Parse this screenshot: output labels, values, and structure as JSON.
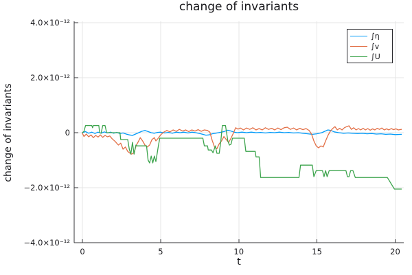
{
  "chart_data": {
    "type": "line",
    "title": "change of invariants",
    "xlabel": "t",
    "ylabel": "change of invariants",
    "value_unit": "1e-12",
    "xlim": [
      -0.55,
      20.55
    ],
    "ylim_e12": [
      -4.05,
      4.05
    ],
    "grid": true,
    "legend_position": "top-right",
    "x_ticks": {
      "values": [
        0,
        5,
        10,
        15,
        20
      ],
      "labels": [
        "0",
        "5",
        "10",
        "15",
        "20"
      ]
    },
    "y_ticks": {
      "values_e12": [
        4,
        2,
        0,
        -2,
        -4
      ],
      "labels": [
        "4.0×10⁻¹²",
        "2.0×10⁻¹²",
        "0",
        "−2.0×10⁻¹²",
        "−4.0×10⁻¹²"
      ]
    },
    "series": [
      {
        "name": "∫η",
        "color": "#009af9",
        "points_e12": [
          [
            0,
            0
          ],
          [
            0.2,
            0.04
          ],
          [
            0.4,
            -0.02
          ],
          [
            0.6,
            0.02
          ],
          [
            0.8,
            -0.03
          ],
          [
            1,
            0.02
          ],
          [
            1.2,
            -0.02
          ],
          [
            1.4,
            0.03
          ],
          [
            1.6,
            -0.01
          ],
          [
            1.8,
            0.02
          ],
          [
            2,
            -0.02
          ],
          [
            2.2,
            0.01
          ],
          [
            2.4,
            -0.03
          ],
          [
            2.6,
            -0.01
          ],
          [
            2.8,
            -0.05
          ],
          [
            3,
            -0.08
          ],
          [
            3.2,
            -0.1
          ],
          [
            3.4,
            -0.05
          ],
          [
            3.6,
            0
          ],
          [
            3.8,
            0.05
          ],
          [
            4,
            0.08
          ],
          [
            4.2,
            0.04
          ],
          [
            4.4,
            0
          ],
          [
            4.6,
            -0.02
          ],
          [
            4.8,
            0.01
          ],
          [
            5,
            0.02
          ],
          [
            5.25,
            -0.01
          ],
          [
            5.5,
            0.01
          ],
          [
            5.75,
            -0.02
          ],
          [
            6,
            0.02
          ],
          [
            6.25,
            0
          ],
          [
            6.5,
            0.02
          ],
          [
            6.75,
            -0.01
          ],
          [
            7,
            0.02
          ],
          [
            7.25,
            0
          ],
          [
            7.5,
            -0.03
          ],
          [
            7.7,
            -0.06
          ],
          [
            7.9,
            -0.09
          ],
          [
            8.1,
            -0.08
          ],
          [
            8.3,
            -0.04
          ],
          [
            8.5,
            -0.02
          ],
          [
            8.7,
            0
          ],
          [
            8.9,
            0.02
          ],
          [
            9.1,
            0.05
          ],
          [
            9.3,
            0.09
          ],
          [
            9.5,
            0.06
          ],
          [
            9.7,
            0.02
          ],
          [
            9.9,
            0
          ],
          [
            10.2,
            0.02
          ],
          [
            10.5,
            0
          ],
          [
            10.8,
            0.02
          ],
          [
            11.1,
            0
          ],
          [
            11.4,
            0.01
          ],
          [
            11.7,
            -0.01
          ],
          [
            12,
            0.01
          ],
          [
            12.3,
            0
          ],
          [
            12.6,
            0.02
          ],
          [
            12.9,
            0
          ],
          [
            13.2,
            0.01
          ],
          [
            13.5,
            -0.01
          ],
          [
            13.8,
            0
          ],
          [
            14.1,
            -0.02
          ],
          [
            14.4,
            -0.04
          ],
          [
            14.7,
            -0.06
          ],
          [
            15,
            -0.04
          ],
          [
            15.3,
            0
          ],
          [
            15.5,
            0.05
          ],
          [
            15.7,
            0.1
          ],
          [
            15.9,
            0.08
          ],
          [
            16.1,
            0.03
          ],
          [
            16.4,
            0
          ],
          [
            16.7,
            -0.02
          ],
          [
            17,
            -0.01
          ],
          [
            17.3,
            -0.02
          ],
          [
            17.6,
            -0.03
          ],
          [
            17.9,
            -0.02
          ],
          [
            18.2,
            -0.04
          ],
          [
            18.5,
            -0.03
          ],
          [
            18.8,
            -0.05
          ],
          [
            19.1,
            -0.04
          ],
          [
            19.4,
            -0.06
          ],
          [
            19.7,
            -0.05
          ],
          [
            20,
            -0.07
          ],
          [
            20.4,
            -0.06
          ]
        ]
      },
      {
        "name": "∫v",
        "color": "#e26f46",
        "points_e12": [
          [
            0,
            -0.02
          ],
          [
            0.1,
            -0.14
          ],
          [
            0.25,
            -0.05
          ],
          [
            0.4,
            -0.15
          ],
          [
            0.55,
            -0.08
          ],
          [
            0.7,
            -0.18
          ],
          [
            0.85,
            -0.1
          ],
          [
            1,
            -0.16
          ],
          [
            1.15,
            -0.08
          ],
          [
            1.3,
            -0.17
          ],
          [
            1.45,
            -0.1
          ],
          [
            1.6,
            -0.15
          ],
          [
            1.75,
            -0.12
          ],
          [
            1.9,
            -0.22
          ],
          [
            2.1,
            -0.32
          ],
          [
            2.3,
            -0.45
          ],
          [
            2.45,
            -0.38
          ],
          [
            2.6,
            -0.6
          ],
          [
            2.75,
            -0.52
          ],
          [
            2.9,
            -0.68
          ],
          [
            3.05,
            -0.75
          ],
          [
            3.15,
            -0.78
          ],
          [
            3.3,
            -0.72
          ],
          [
            3.45,
            -0.45
          ],
          [
            3.6,
            -0.3
          ],
          [
            3.7,
            -0.18
          ],
          [
            3.85,
            -0.3
          ],
          [
            4,
            -0.45
          ],
          [
            4.15,
            -0.52
          ],
          [
            4.3,
            -0.45
          ],
          [
            4.45,
            -0.25
          ],
          [
            4.6,
            -0.18
          ],
          [
            4.7,
            -0.3
          ],
          [
            4.85,
            -0.2
          ],
          [
            5,
            -0.08
          ],
          [
            5.2,
            0.02
          ],
          [
            5.4,
            0.08
          ],
          [
            5.6,
            0.03
          ],
          [
            5.8,
            0.1
          ],
          [
            6,
            0.05
          ],
          [
            6.2,
            0.12
          ],
          [
            6.4,
            0.06
          ],
          [
            6.6,
            0.1
          ],
          [
            6.8,
            0.04
          ],
          [
            7,
            0.1
          ],
          [
            7.2,
            0.06
          ],
          [
            7.4,
            0.11
          ],
          [
            7.6,
            0.05
          ],
          [
            7.8,
            0.1
          ],
          [
            8,
            0.08
          ],
          [
            8.15,
            0.02
          ],
          [
            8.3,
            -0.28
          ],
          [
            8.45,
            -0.52
          ],
          [
            8.6,
            -0.58
          ],
          [
            8.75,
            -0.4
          ],
          [
            8.9,
            -0.3
          ],
          [
            9.05,
            -0.14
          ],
          [
            9.2,
            -0.25
          ],
          [
            9.35,
            -0.36
          ],
          [
            9.5,
            -0.2
          ],
          [
            9.65,
            -0.02
          ],
          [
            9.8,
            0.18
          ],
          [
            9.95,
            0.13
          ],
          [
            10.1,
            0.17
          ],
          [
            10.3,
            0.1
          ],
          [
            10.5,
            0.17
          ],
          [
            10.7,
            0.12
          ],
          [
            10.9,
            0.18
          ],
          [
            11.1,
            0.1
          ],
          [
            11.3,
            0.15
          ],
          [
            11.5,
            0.1
          ],
          [
            11.7,
            0.18
          ],
          [
            11.9,
            0.12
          ],
          [
            12.1,
            0.16
          ],
          [
            12.3,
            0.1
          ],
          [
            12.5,
            0.17
          ],
          [
            12.7,
            0.11
          ],
          [
            12.9,
            0.18
          ],
          [
            13.1,
            0.2
          ],
          [
            13.3,
            0.12
          ],
          [
            13.5,
            0.17
          ],
          [
            13.7,
            0.1
          ],
          [
            13.9,
            0.16
          ],
          [
            14.1,
            0.11
          ],
          [
            14.3,
            0.15
          ],
          [
            14.5,
            0.08
          ],
          [
            14.65,
            -0.05
          ],
          [
            14.8,
            -0.3
          ],
          [
            14.95,
            -0.48
          ],
          [
            15.1,
            -0.55
          ],
          [
            15.25,
            -0.48
          ],
          [
            15.4,
            -0.52
          ],
          [
            15.55,
            -0.3
          ],
          [
            15.7,
            -0.1
          ],
          [
            15.85,
            0.05
          ],
          [
            16,
            0.15
          ],
          [
            16.15,
            0.22
          ],
          [
            16.3,
            0.1
          ],
          [
            16.45,
            0.16
          ],
          [
            16.6,
            0.1
          ],
          [
            16.75,
            0.18
          ],
          [
            16.9,
            0.22
          ],
          [
            17.05,
            0.25
          ],
          [
            17.2,
            0.12
          ],
          [
            17.35,
            0.18
          ],
          [
            17.5,
            0.1
          ],
          [
            17.65,
            0.15
          ],
          [
            17.8,
            0.1
          ],
          [
            17.95,
            0.16
          ],
          [
            18.1,
            0.1
          ],
          [
            18.25,
            0.15
          ],
          [
            18.4,
            0.09
          ],
          [
            18.55,
            0.14
          ],
          [
            18.7,
            0.1
          ],
          [
            18.85,
            0.16
          ],
          [
            19,
            0.12
          ],
          [
            19.15,
            0.17
          ],
          [
            19.3,
            0.1
          ],
          [
            19.45,
            0.14
          ],
          [
            19.6,
            0.1
          ],
          [
            19.75,
            0.15
          ],
          [
            19.9,
            0.11
          ],
          [
            20.05,
            0.14
          ],
          [
            20.2,
            0.1
          ],
          [
            20.4,
            0.12
          ]
        ]
      },
      {
        "name": "∫U",
        "color": "#3da44d",
        "points_e12": [
          [
            0,
            0
          ],
          [
            0.1,
            0.05
          ],
          [
            0.2,
            0.26
          ],
          [
            0.6,
            0.26
          ],
          [
            0.65,
            0.18
          ],
          [
            0.7,
            0.26
          ],
          [
            1.05,
            0.26
          ],
          [
            1.1,
            0
          ],
          [
            1.2,
            -0.02
          ],
          [
            1.3,
            0.26
          ],
          [
            1.45,
            0.26
          ],
          [
            1.55,
            0
          ],
          [
            2.4,
            0
          ],
          [
            2.45,
            -0.25
          ],
          [
            2.9,
            -0.25
          ],
          [
            3,
            -0.6
          ],
          [
            3.1,
            -0.78
          ],
          [
            3.2,
            -0.35
          ],
          [
            3.3,
            -0.78
          ],
          [
            3.42,
            -0.45
          ],
          [
            3.5,
            -0.48
          ],
          [
            4.1,
            -0.48
          ],
          [
            4.2,
            -1
          ],
          [
            4.3,
            -1.1
          ],
          [
            4.4,
            -0.85
          ],
          [
            4.5,
            -1.1
          ],
          [
            4.6,
            -0.85
          ],
          [
            4.7,
            -1.05
          ],
          [
            4.85,
            -0.5
          ],
          [
            4.95,
            -0.2
          ],
          [
            7.7,
            -0.2
          ],
          [
            7.8,
            -0.48
          ],
          [
            8,
            -0.48
          ],
          [
            8.05,
            -0.63
          ],
          [
            8.25,
            -0.63
          ],
          [
            8.35,
            -0.73
          ],
          [
            8.5,
            -0.48
          ],
          [
            8.6,
            -0.75
          ],
          [
            8.75,
            -0.75
          ],
          [
            8.85,
            -0.3
          ],
          [
            8.95,
            0.26
          ],
          [
            9.15,
            0.26
          ],
          [
            9.3,
            -0.3
          ],
          [
            9.4,
            -0.45
          ],
          [
            9.5,
            -0.42
          ],
          [
            9.6,
            -0.2
          ],
          [
            10.35,
            -0.2
          ],
          [
            10.45,
            -0.68
          ],
          [
            11.05,
            -0.68
          ],
          [
            11.1,
            -0.88
          ],
          [
            11.3,
            -0.88
          ],
          [
            11.4,
            -1.63
          ],
          [
            13.85,
            -1.63
          ],
          [
            13.95,
            -1.18
          ],
          [
            14.7,
            -1.18
          ],
          [
            14.8,
            -1.6
          ],
          [
            14.95,
            -1.38
          ],
          [
            15.35,
            -1.38
          ],
          [
            15.45,
            -1.6
          ],
          [
            15.55,
            -1.38
          ],
          [
            15.65,
            -1.6
          ],
          [
            15.78,
            -1.38
          ],
          [
            16.85,
            -1.38
          ],
          [
            16.95,
            -1.6
          ],
          [
            17.05,
            -1.6
          ],
          [
            17.15,
            -1.38
          ],
          [
            17.3,
            -1.38
          ],
          [
            17.45,
            -1.63
          ],
          [
            19.5,
            -1.63
          ],
          [
            19.95,
            -2.05
          ],
          [
            20.4,
            -2.05
          ]
        ]
      }
    ]
  },
  "legend": {
    "items": [
      {
        "label": "∫η"
      },
      {
        "label": "∫v"
      },
      {
        "label": "∫U"
      }
    ]
  }
}
